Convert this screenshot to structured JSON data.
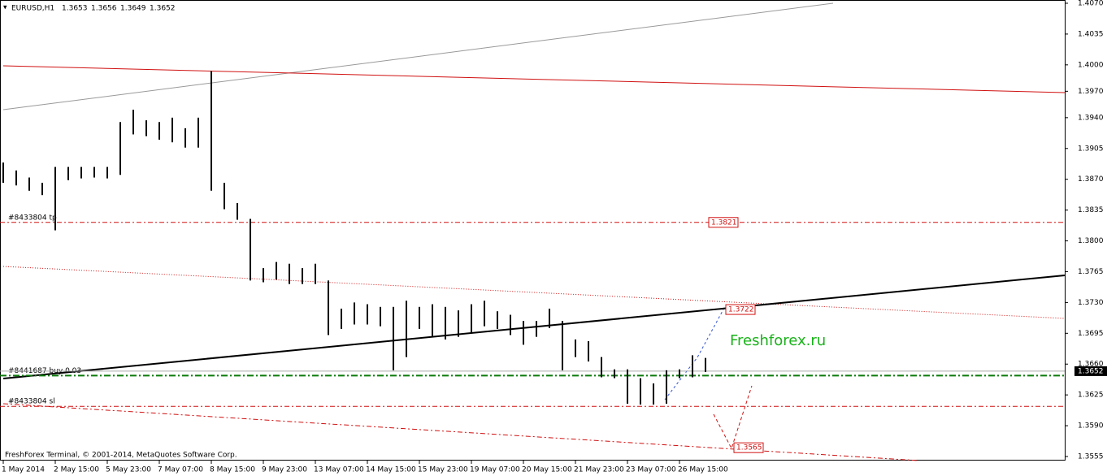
{
  "chart_data": {
    "type": "ohlc",
    "symbol": "EURUSD,H1",
    "quote": [
      1.3653,
      1.3656,
      1.3649,
      1.3652
    ],
    "watermark": "Freshforex.ru",
    "footer": "FreshForex Terminal, © 2001-2014, MetaQuotes Software Corp.",
    "categories": [
      "1 May 2014",
      null,
      null,
      null,
      "2 May 15:00",
      null,
      null,
      null,
      "5 May 23:00",
      null,
      null,
      null,
      "7 May 07:00",
      null,
      null,
      null,
      "8 May 15:00",
      null,
      null,
      null,
      "9 May 23:00",
      null,
      null,
      null,
      "13 May 07:00",
      null,
      null,
      null,
      "14 May 15:00",
      null,
      null,
      null,
      "15 May 23:00",
      null,
      null,
      null,
      "19 May 07:00",
      null,
      null,
      null,
      "20 May 15:00",
      null,
      null,
      null,
      "21 May 23:00",
      null,
      null,
      null,
      "23 May 07:00",
      null,
      null,
      null,
      "26 May 15:00",
      null,
      null
    ],
    "high": [
      1.3889,
      1.388,
      1.3872,
      1.3866,
      1.3884,
      1.3884,
      1.3884,
      1.3884,
      1.3884,
      1.3935,
      1.3949,
      1.3937,
      1.3935,
      1.394,
      1.3928,
      1.394,
      1.3993,
      1.3866,
      1.3843,
      1.3825,
      1.3769,
      1.3776,
      1.3774,
      1.3769,
      1.3774,
      1.3755,
      1.3723,
      1.373,
      1.3728,
      1.3725,
      1.3725,
      1.3732,
      1.3725,
      1.3728,
      1.3725,
      1.3721,
      1.3728,
      1.3732,
      1.372,
      1.3716,
      1.3709,
      1.3709,
      1.3723,
      1.3709,
      1.3688,
      1.3686,
      1.3668,
      1.3654,
      1.3654,
      1.3644,
      1.3638,
      1.3653,
      1.3654,
      1.367,
      1.3667
    ],
    "low": [
      1.3866,
      1.3863,
      1.3857,
      1.3852,
      1.3812,
      1.3869,
      1.3871,
      1.3872,
      1.3871,
      1.3875,
      1.3921,
      1.3919,
      1.3915,
      1.3912,
      1.3906,
      1.3906,
      1.3857,
      1.3836,
      1.3824,
      1.3755,
      1.3753,
      1.3756,
      1.3751,
      1.3751,
      1.3751,
      1.3693,
      1.37,
      1.3705,
      1.3705,
      1.3703,
      1.3653,
      1.3668,
      1.37,
      1.3691,
      1.3688,
      1.3691,
      1.3695,
      1.3703,
      1.37,
      1.3693,
      1.3682,
      1.3691,
      1.3701,
      1.3653,
      1.3668,
      1.3663,
      1.3645,
      1.3644,
      1.3615,
      1.3614,
      1.3614,
      1.3615,
      1.3644,
      1.3645,
      1.3651
    ],
    "color": "#000000",
    "levels": [
      {
        "name": "#8433804 tp",
        "value": 1.3821,
        "color": "#d01010"
      },
      {
        "name": "#8441687 buy 0.03",
        "value": 1.3647,
        "color": "#0a7a0a"
      },
      {
        "name": "#8433804 sl",
        "value": 1.3612,
        "color": "#d01010"
      }
    ],
    "price_labels": [
      1.3821,
      1.3722,
      1.3565
    ],
    "current_price": 1.3652,
    "ylim": [
      1.3555,
      1.407
    ],
    "yticks": [
      {
        "value": 1.407,
        "label": "1.4070"
      },
      1.4035,
      {
        "value": 1.4,
        "label": "1.4000"
      },
      {
        "value": 1.397,
        "label": "1.3970"
      },
      {
        "value": 1.394,
        "label": "1.3940"
      },
      1.3905,
      {
        "value": 1.387,
        "label": "1.3870"
      },
      1.3835,
      {
        "value": 1.38,
        "label": "1.3800"
      },
      1.3765,
      {
        "value": 1.373,
        "label": "1.3730"
      },
      1.3695,
      {
        "value": 1.366,
        "label": "1.3660"
      },
      1.3625,
      {
        "value": 1.359,
        "label": "1.3590"
      },
      1.3555
    ]
  }
}
